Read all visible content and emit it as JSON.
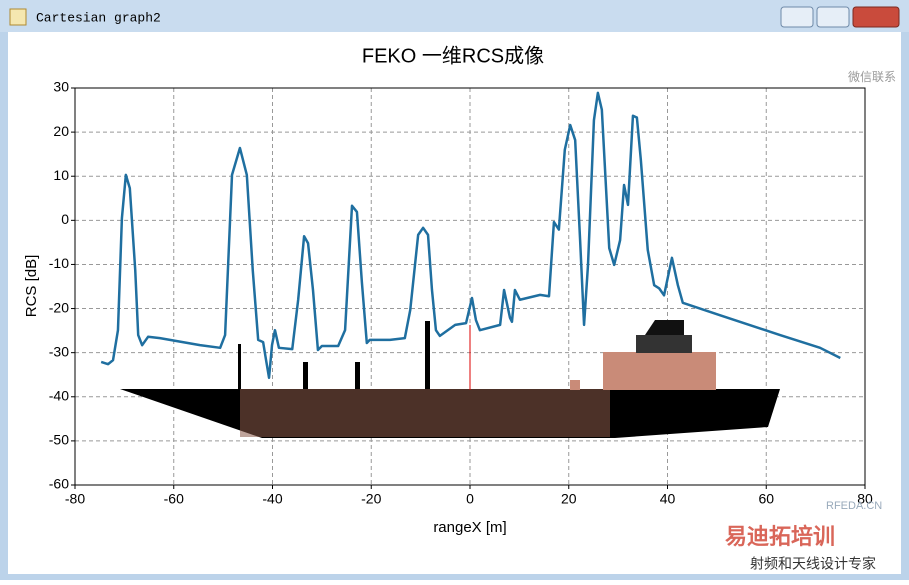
{
  "window": {
    "title": "Cartesian graph2"
  },
  "chart_data": {
    "type": "line",
    "title": "FEKO 一维RCS成像",
    "x_label": "rangeX [m]",
    "y_label": "RCS [dB]",
    "xlim": [
      -80,
      80
    ],
    "xticks": [
      -80,
      -60,
      -40,
      -20,
      0,
      20,
      40,
      60,
      80
    ],
    "ylim": [
      -60,
      30
    ],
    "yticks": [
      -60,
      -50,
      -40,
      -30,
      -20,
      -10,
      0,
      10,
      20,
      30
    ],
    "grid": true,
    "x": [
      -74.7,
      -73.3,
      -72.3,
      -71.3,
      -70.5,
      -69.7,
      -68.9,
      -67.8,
      -67.2,
      -66.4,
      -65.2,
      -62.8,
      -54.7,
      -50.6,
      -49.6,
      -48.2,
      -46.6,
      -45.2,
      -44,
      -42.9,
      -41.9,
      -41.3,
      -40.7,
      -40.1,
      -39.5,
      -38.7,
      -36,
      -34.8,
      -33.6,
      -32.8,
      -31.8,
      -30.8,
      -30,
      -26.7,
      -25.3,
      -23.9,
      -22.9,
      -21.9,
      -20.9,
      -20.3,
      -16.2,
      -13.2,
      -12.1,
      -10.5,
      -9.5,
      -8.5,
      -7.7,
      -6.9,
      -6.1,
      -3,
      -0.8,
      0.4,
      1.2,
      2,
      6.1,
      6.9,
      8.1,
      8.5,
      9.1,
      10.1,
      14.2,
      16,
      17,
      18,
      19.2,
      20.3,
      21.3,
      22.3,
      23.1,
      23.9,
      25.1,
      25.9,
      26.7,
      28.2,
      29.2,
      30.4,
      31.2,
      32,
      33,
      33.8,
      34.6,
      36,
      37.3,
      38.3,
      39.3,
      40.9,
      42.1,
      43.1,
      50.6,
      62.8,
      70.9,
      75
    ],
    "series": [
      {
        "name": "RCS",
        "color": "#1f6fa0",
        "values": [
          -32.1,
          -32.6,
          -31.7,
          -24.9,
          0.5,
          10.3,
          7.3,
          -11.3,
          -26,
          -28.3,
          -26.4,
          -26.7,
          -28.3,
          -28.9,
          -26,
          10.3,
          16.4,
          10.3,
          -11.3,
          -27.1,
          -27.6,
          -31.7,
          -35.7,
          -28.3,
          -24.9,
          -28.9,
          -29.2,
          -18,
          -3.6,
          -5.2,
          -15.8,
          -29.4,
          -28.5,
          -28.5,
          -24.9,
          3.3,
          1.9,
          -14,
          -27.8,
          -27.1,
          -27.1,
          -26.7,
          -20.3,
          -3.3,
          -1.7,
          -3.3,
          -15.8,
          -24.9,
          -26.2,
          -23.7,
          -23.3,
          -17.6,
          -22.6,
          -24.9,
          -23.7,
          -15.8,
          -22.1,
          -23,
          -15.8,
          -18,
          -16.9,
          -17.2,
          -0.4,
          -2.1,
          16,
          21.6,
          18.2,
          -4.5,
          -23.7,
          -10.1,
          22.7,
          28.9,
          25.1,
          -6.3,
          -10.1,
          -4.5,
          8,
          3.5,
          23.7,
          23.3,
          13.7,
          -6.7,
          -14.7,
          -15.4,
          -17,
          -8.5,
          -14.7,
          -18.7,
          -21.5,
          -26,
          -28.9,
          -31.2
        ]
      }
    ]
  },
  "watermarks": [
    "微信联系",
    "RFEDA.CN",
    "易迪拓培训",
    "射频和天线设计专家"
  ]
}
